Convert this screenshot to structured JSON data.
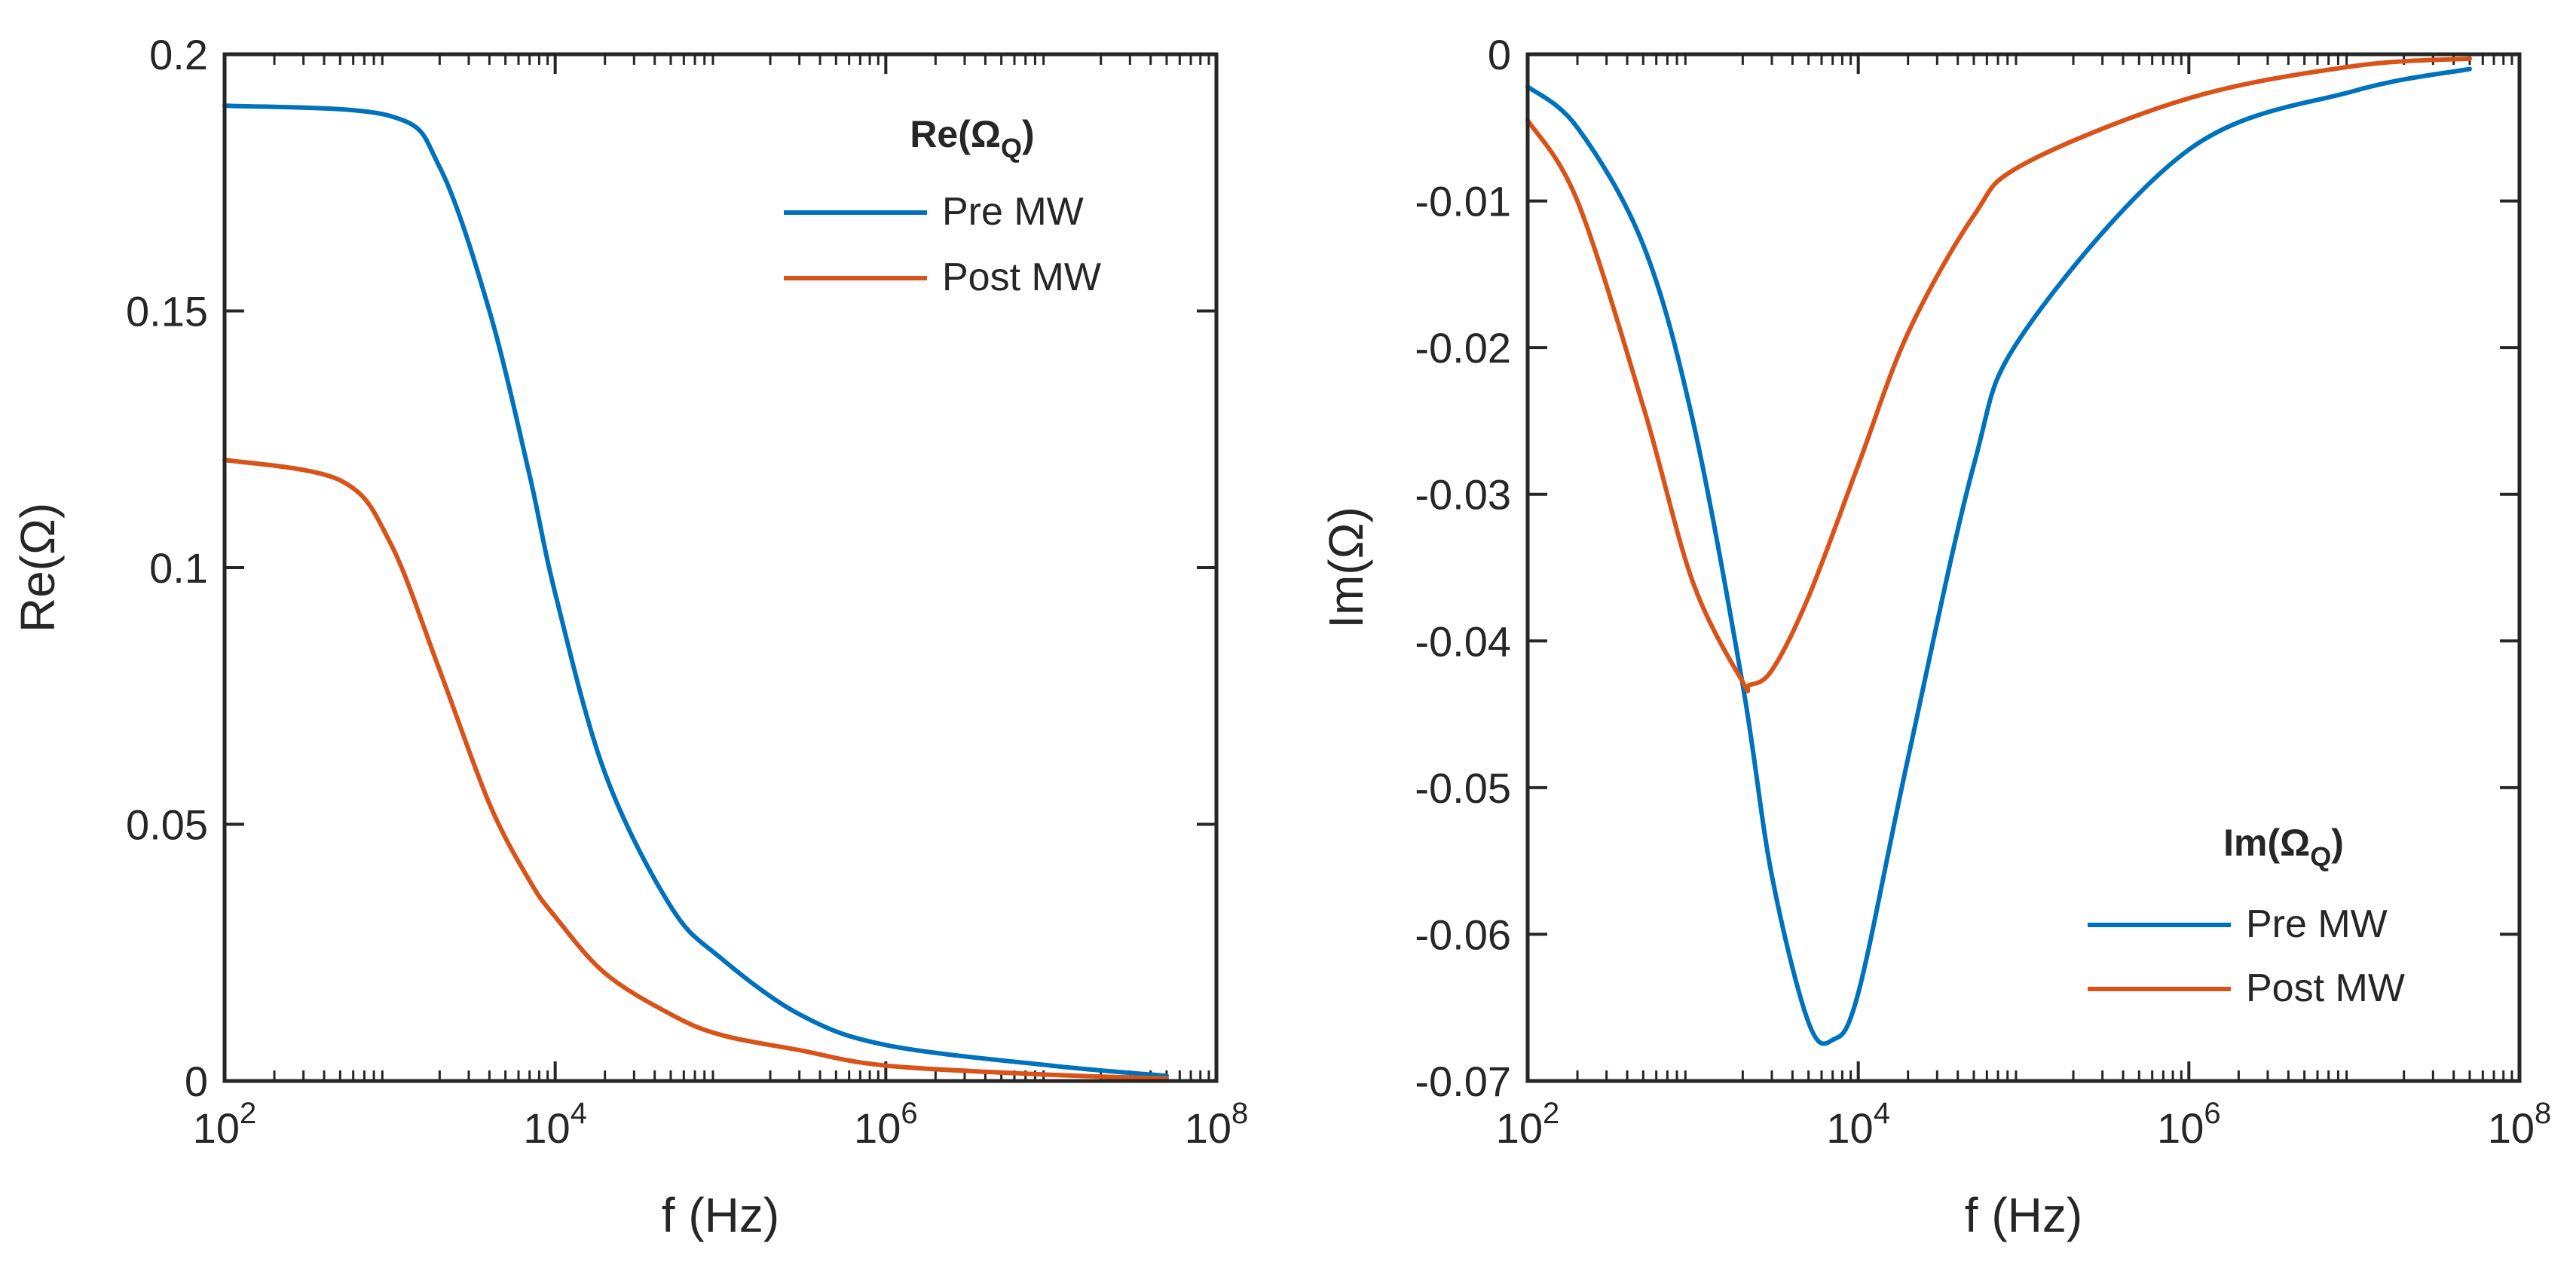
{
  "figure": {
    "background": "#ffffff",
    "axis_color": "#262626"
  },
  "chart_data": [
    {
      "type": "line",
      "xscale": "log",
      "xlim": [
        100,
        100000000
      ],
      "ylim": [
        0,
        0.2
      ],
      "xticks": [
        100,
        10000,
        1000000,
        100000000
      ],
      "xtick_labels": [
        {
          "base": "10",
          "exp": "2"
        },
        {
          "base": "10",
          "exp": "4"
        },
        {
          "base": "10",
          "exp": "6"
        },
        {
          "base": "10",
          "exp": "8"
        }
      ],
      "yticks": [
        0,
        0.05,
        0.1,
        0.15,
        0.2
      ],
      "ytick_labels": [
        "0",
        "0.05",
        "0.1",
        "0.15",
        "0.2"
      ],
      "xlabel": "f (Hz)",
      "ylabel": "Re(Ω)",
      "legend": {
        "title": "Re(Ω",
        "title_subscript": "Q",
        "title_close": ")",
        "location": "top-right"
      },
      "series": [
        {
          "name": "Pre MW",
          "color": "#0072BD",
          "x": [
            100,
            1000,
            2000,
            4000,
            7000,
            10000,
            20000,
            50000,
            100000,
            300000,
            1000000,
            10000000,
            50000000
          ],
          "y": [
            0.19,
            0.188,
            0.178,
            0.15,
            0.118,
            0.095,
            0.06,
            0.034,
            0.024,
            0.013,
            0.007,
            0.003,
            0.001
          ]
        },
        {
          "name": "Post MW",
          "color": "#D95319",
          "x": [
            100,
            500,
            1000,
            2000,
            4000,
            7000,
            10000,
            20000,
            50000,
            100000,
            300000,
            1000000,
            10000000,
            50000000
          ],
          "y": [
            0.121,
            0.117,
            0.105,
            0.08,
            0.054,
            0.039,
            0.032,
            0.021,
            0.013,
            0.009,
            0.006,
            0.003,
            0.0012,
            0.0005
          ]
        }
      ]
    },
    {
      "type": "line",
      "xscale": "log",
      "xlim": [
        100,
        100000000
      ],
      "ylim": [
        -0.07,
        0
      ],
      "xticks": [
        100,
        10000,
        1000000,
        100000000
      ],
      "xtick_labels": [
        {
          "base": "10",
          "exp": "2"
        },
        {
          "base": "10",
          "exp": "4"
        },
        {
          "base": "10",
          "exp": "6"
        },
        {
          "base": "10",
          "exp": "8"
        }
      ],
      "yticks": [
        -0.07,
        -0.06,
        -0.05,
        -0.04,
        -0.03,
        -0.02,
        -0.01,
        0
      ],
      "ytick_labels": [
        "-0.07",
        "-0.06",
        "-0.05",
        "-0.04",
        "-0.03",
        "-0.02",
        "-0.01",
        "0"
      ],
      "xlabel": "f (Hz)",
      "ylabel": "Im(Ω)",
      "legend": {
        "title": "Im(Ω",
        "title_subscript": "Q",
        "title_close": ")",
        "location": "bottom-right"
      },
      "series": [
        {
          "name": "Pre MW",
          "color": "#0072BD",
          "x": [
            100,
            200,
            500,
            1000,
            2000,
            3000,
            5000,
            7000,
            10000,
            20000,
            50000,
            100000,
            1000000,
            10000000,
            50000000
          ],
          "y": [
            -0.0022,
            -0.005,
            -0.013,
            -0.025,
            -0.043,
            -0.056,
            -0.066,
            -0.0672,
            -0.064,
            -0.048,
            -0.028,
            -0.019,
            -0.0065,
            -0.0025,
            -0.001
          ]
        },
        {
          "name": "Post MW",
          "color": "#D95319",
          "x": [
            100,
            200,
            500,
            1000,
            2000,
            2200,
            3000,
            5000,
            10000,
            20000,
            50000,
            100000,
            1000000,
            10000000,
            50000000
          ],
          "y": [
            -0.0045,
            -0.01,
            -0.024,
            -0.036,
            -0.0428,
            -0.043,
            -0.042,
            -0.037,
            -0.028,
            -0.019,
            -0.011,
            -0.0075,
            -0.003,
            -0.0008,
            -0.0003
          ]
        }
      ]
    }
  ]
}
